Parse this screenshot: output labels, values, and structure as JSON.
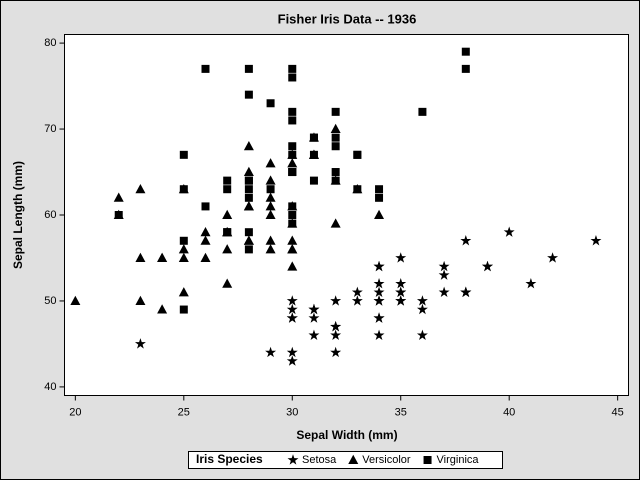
{
  "chart_data": {
    "type": "scatter",
    "title": "Fisher Iris Data -- 1936",
    "x_label": "Sepal Width (mm)",
    "y_label": "Sepal Length (mm)",
    "legend_title": "Iris Species",
    "legend": "bottom",
    "xlim": [
      19.5,
      45.5
    ],
    "xticks": [
      20,
      25,
      30,
      35,
      40,
      45
    ],
    "ylim": [
      39,
      81
    ],
    "yticks": [
      40,
      50,
      60,
      70,
      80
    ],
    "series": [
      {
        "name": "Setosa",
        "color": "#000000",
        "marker": "star",
        "x": [
          35,
          30,
          32,
          31,
          36,
          39,
          34,
          34,
          29,
          31,
          37,
          34,
          30,
          30,
          40,
          44,
          39,
          35,
          38,
          38,
          34,
          37,
          36,
          33,
          34,
          30,
          34,
          35,
          34,
          32,
          31,
          34,
          41,
          42,
          31,
          32,
          35,
          36,
          30,
          34,
          35,
          23,
          32,
          35,
          38,
          30,
          38,
          32,
          37,
          33
        ],
        "values": [
          51,
          49,
          47,
          46,
          50,
          54,
          46,
          50,
          44,
          49,
          54,
          48,
          48,
          43,
          58,
          57,
          54,
          51,
          57,
          51,
          54,
          51,
          46,
          51,
          48,
          50,
          50,
          52,
          52,
          47,
          48,
          54,
          52,
          55,
          49,
          50,
          55,
          49,
          44,
          51,
          50,
          45,
          44,
          50,
          51,
          48,
          51,
          46,
          53,
          50
        ]
      },
      {
        "name": "Versicolor",
        "color": "#000000",
        "marker": "triangle",
        "x": [
          32,
          32,
          31,
          23,
          28,
          28,
          33,
          24,
          29,
          27,
          20,
          30,
          22,
          29,
          29,
          31,
          30,
          27,
          22,
          25,
          32,
          28,
          25,
          28,
          29,
          30,
          28,
          30,
          29,
          26,
          24,
          24,
          27,
          27,
          30,
          34,
          31,
          23,
          30,
          25,
          26,
          30,
          26,
          23,
          27,
          30,
          29,
          29,
          25,
          28
        ],
        "values": [
          70,
          64,
          69,
          55,
          65,
          57,
          63,
          49,
          66,
          52,
          50,
          59,
          60,
          61,
          56,
          67,
          56,
          58,
          62,
          56,
          59,
          61,
          63,
          61,
          64,
          66,
          68,
          67,
          60,
          57,
          55,
          55,
          58,
          60,
          54,
          60,
          67,
          63,
          56,
          55,
          55,
          61,
          58,
          50,
          56,
          57,
          57,
          62,
          51,
          57
        ]
      },
      {
        "name": "Virginica",
        "color": "#000000",
        "marker": "square",
        "x": [
          33,
          27,
          30,
          29,
          30,
          30,
          25,
          29,
          25,
          36,
          32,
          27,
          30,
          25,
          28,
          32,
          30,
          38,
          26,
          22,
          32,
          28,
          28,
          27,
          33,
          32,
          28,
          30,
          28,
          30,
          28,
          38,
          28,
          28,
          26,
          30,
          34,
          31,
          30,
          31,
          31,
          31,
          27,
          32,
          33,
          30,
          25,
          30,
          34,
          30
        ],
        "values": [
          63,
          58,
          71,
          63,
          65,
          76,
          49,
          73,
          67,
          72,
          65,
          64,
          68,
          57,
          58,
          64,
          65,
          77,
          77,
          60,
          69,
          56,
          77,
          63,
          67,
          72,
          62,
          61,
          64,
          72,
          74,
          79,
          64,
          63,
          61,
          77,
          63,
          64,
          60,
          69,
          67,
          69,
          58,
          68,
          67,
          67,
          63,
          65,
          62,
          59
        ]
      }
    ]
  }
}
